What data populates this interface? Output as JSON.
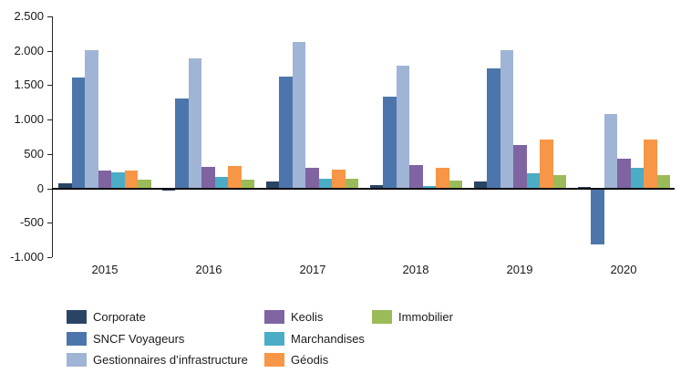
{
  "chart_data": {
    "type": "bar",
    "title": "",
    "categories": [
      "2015",
      "2016",
      "2017",
      "2018",
      "2019",
      "2020"
    ],
    "series": [
      {
        "name": "Corporate",
        "color": "#2A4465",
        "values": [
          80,
          -25,
          100,
          50,
          110,
          25
        ]
      },
      {
        "name": "SNCF Voyageurs",
        "color": "#4C76AB",
        "values": [
          1620,
          1310,
          1630,
          1340,
          1750,
          -810
        ]
      },
      {
        "name": "Gestionnaires d’infrastructure",
        "color": "#A0B4D6",
        "values": [
          2010,
          1900,
          2130,
          1790,
          2010,
          1090
        ]
      },
      {
        "name": "Keolis",
        "color": "#8064A2",
        "values": [
          260,
          320,
          305,
          350,
          630,
          440
        ]
      },
      {
        "name": "Marchandises",
        "color": "#4BACC6",
        "values": [
          235,
          170,
          140,
          40,
          225,
          310
        ]
      },
      {
        "name": "Géodis",
        "color": "#F79646",
        "values": [
          270,
          330,
          275,
          300,
          720,
          710
        ]
      },
      {
        "name": "Immobilier",
        "color": "#9BBB59",
        "values": [
          135,
          135,
          150,
          115,
          205,
          205
        ]
      }
    ],
    "xlabel": "",
    "ylabel": "",
    "y_axis": {
      "min": -1000,
      "max": 2500,
      "step": 500,
      "tick_labels": [
        "2.500",
        "2.000",
        "1.500",
        "1.000",
        "500",
        "0",
        "-500",
        "-1.000"
      ]
    },
    "grid": false,
    "legend": {
      "position": "bottom",
      "columns": [
        [
          0,
          1,
          2
        ],
        [
          3,
          4,
          5
        ],
        [
          6
        ]
      ]
    }
  }
}
